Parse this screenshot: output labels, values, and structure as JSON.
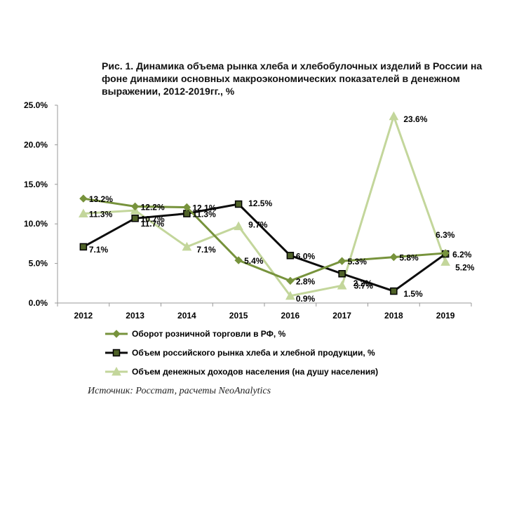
{
  "title": "Рис. 1. Динамика объема рынка хлеба и хлебобулочных изделий в России на фоне динамики основных макроэкономических показателей в денежном выражении, 2012-2019гг., %",
  "source": "Источник: Росстат, расчеты NeoAnalytics",
  "chart_data": {
    "type": "line",
    "categories": [
      "2012",
      "2013",
      "2014",
      "2015",
      "2016",
      "2017",
      "2018",
      "2019"
    ],
    "ylim": [
      0,
      25
    ],
    "yticks": [
      0,
      5,
      10,
      15,
      20,
      25
    ],
    "ytick_labels": [
      "0.0%",
      "5.0%",
      "10.0%",
      "15.0%",
      "20.0%",
      "25.0%"
    ],
    "grid": false,
    "legend_position": "bottom",
    "series": [
      {
        "name": "Оборот розничной торговли в РФ, %",
        "values": [
          13.2,
          12.2,
          12.1,
          5.4,
          2.8,
          5.3,
          5.8,
          6.3
        ],
        "labels": [
          "13.2%",
          "12.2%",
          "12.1%",
          "5.4%",
          "2.8%",
          "5.3%",
          "5.8%",
          "6.3%"
        ],
        "color": "#77933c",
        "marker": "diamond"
      },
      {
        "name": "Объем российского рынка хлеба и хлебной продукции, %",
        "values": [
          7.1,
          10.7,
          11.3,
          12.5,
          6.0,
          3.7,
          1.5,
          6.2
        ],
        "labels": [
          "7.1%",
          "10.7%",
          "11.3%",
          "12.5%",
          "6.0%",
          "3.7%",
          "1.5%",
          "6.2%"
        ],
        "color": "#0d0d0d",
        "marker_fill": "#4f6228",
        "marker": "square"
      },
      {
        "name": "Объем денежных доходов населения (на душу населения)",
        "values": [
          11.3,
          11.7,
          7.1,
          9.7,
          0.9,
          2.2,
          23.6,
          5.2
        ],
        "labels": [
          "11.3%",
          "11.7%",
          "7.1%",
          "9.7%",
          "0.9%",
          "2.2%",
          "23.6%",
          "5.2%"
        ],
        "color": "#c3d69b",
        "marker": "triangle"
      }
    ]
  }
}
